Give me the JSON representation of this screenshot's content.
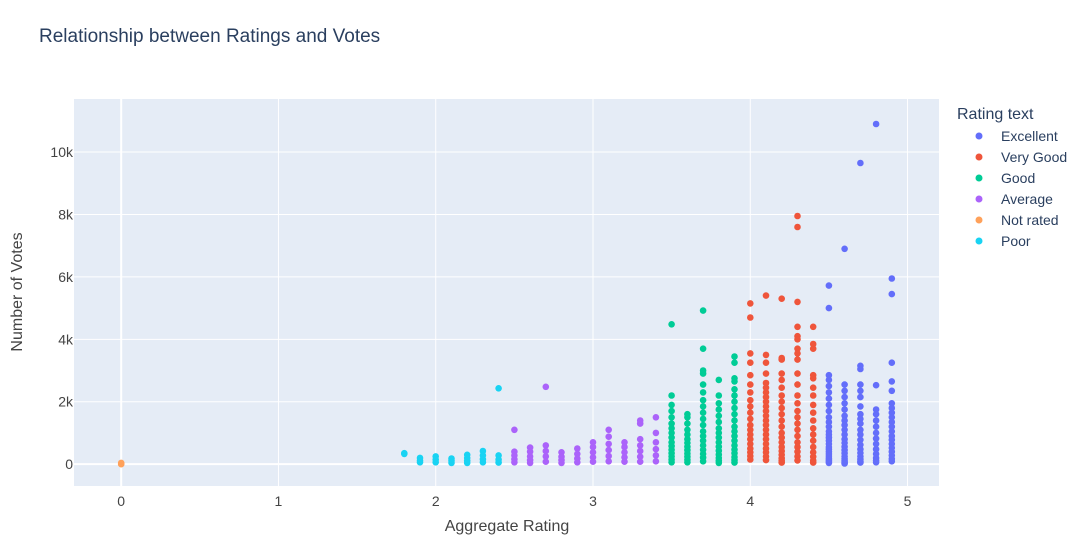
{
  "chart_data": {
    "type": "scatter",
    "title": "Relationship between Ratings and Votes",
    "xlabel": "Aggregate Rating",
    "ylabel": "Number of Votes",
    "xlim": [
      -0.3,
      5.2
    ],
    "ylim": [
      -700,
      11700
    ],
    "x_ticks": [
      0,
      1,
      2,
      3,
      4,
      5
    ],
    "x_tick_labels": [
      "0",
      "1",
      "2",
      "3",
      "4",
      "5"
    ],
    "y_ticks": [
      0,
      2000,
      4000,
      6000,
      8000,
      10000
    ],
    "y_tick_labels": [
      "0",
      "2k",
      "4k",
      "6k",
      "8k",
      "10k"
    ],
    "grid": true,
    "legend_title": "Rating text",
    "legend_position": "right",
    "series": [
      {
        "name": "Excellent",
        "color": "#636efa",
        "x": [
          4.5,
          4.5,
          4.5,
          4.5,
          4.5,
          4.5,
          4.5,
          4.5,
          4.5,
          4.5,
          4.5,
          4.5,
          4.5,
          4.5,
          4.5,
          4.5,
          4.5,
          4.5,
          4.5,
          4.5,
          4.5,
          4.5,
          4.5,
          4.5,
          4.5,
          4.5,
          4.6,
          4.6,
          4.6,
          4.6,
          4.6,
          4.6,
          4.6,
          4.6,
          4.6,
          4.6,
          4.6,
          4.6,
          4.6,
          4.6,
          4.6,
          4.6,
          4.6,
          4.6,
          4.6,
          4.6,
          4.6,
          4.6,
          4.7,
          4.7,
          4.7,
          4.7,
          4.7,
          4.7,
          4.7,
          4.7,
          4.7,
          4.7,
          4.7,
          4.7,
          4.7,
          4.7,
          4.7,
          4.7,
          4.7,
          4.7,
          4.7,
          4.7,
          4.8,
          4.8,
          4.8,
          4.8,
          4.8,
          4.8,
          4.8,
          4.8,
          4.8,
          4.8,
          4.8,
          4.8,
          4.8,
          4.8,
          4.9,
          4.9,
          4.9,
          4.9,
          4.9,
          4.9,
          4.9,
          4.9,
          4.9,
          4.9,
          4.9,
          4.9,
          4.9,
          4.9,
          4.9,
          4.9,
          4.9,
          4.9,
          4.9,
          4.9
        ],
        "y": [
          5720,
          5000,
          2850,
          2700,
          2500,
          2300,
          2100,
          1900,
          1700,
          1500,
          1350,
          1200,
          1050,
          950,
          850,
          750,
          650,
          550,
          480,
          400,
          330,
          260,
          190,
          130,
          80,
          40,
          6900,
          2550,
          2350,
          2150,
          1950,
          1750,
          1550,
          1400,
          1250,
          1100,
          950,
          800,
          680,
          560,
          450,
          350,
          250,
          170,
          110,
          70,
          40,
          20,
          9650,
          3150,
          3050,
          2550,
          2350,
          2150,
          1850,
          1600,
          1450,
          1300,
          1100,
          950,
          780,
          620,
          480,
          360,
          250,
          160,
          90,
          50,
          10900,
          2530,
          1750,
          1600,
          1400,
          1200,
          1000,
          820,
          650,
          480,
          330,
          200,
          120,
          60,
          5950,
          5450,
          3250,
          2650,
          2350,
          1950,
          1800,
          1650,
          1500,
          1350,
          1200,
          1050,
          900,
          780,
          650,
          520,
          400,
          280,
          170,
          90
        ],
        "sizes": [],
        "note": ""
      },
      {
        "name": "Very Good",
        "color": "#ef553b",
        "x": [
          4.0,
          4.0,
          4.0,
          4.0,
          4.0,
          4.0,
          4.0,
          4.0,
          4.0,
          4.0,
          4.0,
          4.0,
          4.0,
          4.0,
          4.0,
          4.0,
          4.0,
          4.0,
          4.0,
          4.0,
          4.1,
          4.1,
          4.1,
          4.1,
          4.1,
          4.1,
          4.1,
          4.1,
          4.1,
          4.1,
          4.1,
          4.1,
          4.1,
          4.1,
          4.1,
          4.1,
          4.1,
          4.1,
          4.1,
          4.1,
          4.1,
          4.1,
          4.2,
          4.2,
          4.2,
          4.2,
          4.2,
          4.2,
          4.2,
          4.2,
          4.2,
          4.2,
          4.2,
          4.2,
          4.2,
          4.2,
          4.2,
          4.2,
          4.2,
          4.2,
          4.2,
          4.2,
          4.2,
          4.3,
          4.3,
          4.3,
          4.3,
          4.3,
          4.3,
          4.3,
          4.3,
          4.3,
          4.3,
          4.3,
          4.3,
          4.3,
          4.3,
          4.3,
          4.3,
          4.3,
          4.3,
          4.3,
          4.3,
          4.3,
          4.3,
          4.3,
          4.4,
          4.4,
          4.4,
          4.4,
          4.4,
          4.4,
          4.4,
          4.4,
          4.4,
          4.4,
          4.4,
          4.4,
          4.4,
          4.4,
          4.4,
          4.4,
          4.4,
          4.4
        ],
        "y": [
          5150,
          4700,
          3550,
          3250,
          2850,
          2550,
          2300,
          2050,
          1850,
          1650,
          1450,
          1250,
          1100,
          950,
          800,
          650,
          500,
          380,
          260,
          150,
          5400,
          3500,
          3250,
          2900,
          2600,
          2450,
          2300,
          2150,
          2000,
          1850,
          1700,
          1550,
          1400,
          1250,
          1100,
          950,
          800,
          650,
          500,
          380,
          250,
          130,
          5300,
          3400,
          3350,
          2900,
          2700,
          2450,
          2200,
          2000,
          1800,
          1600,
          1400,
          1200,
          1000,
          850,
          700,
          550,
          420,
          300,
          190,
          110,
          50,
          7950,
          7600,
          5200,
          4400,
          4100,
          4000,
          3700,
          3550,
          3350,
          2900,
          2550,
          2200,
          1950,
          1700,
          1500,
          1300,
          1100,
          900,
          700,
          550,
          400,
          250,
          120,
          4400,
          3850,
          3700,
          2850,
          2750,
          2450,
          2200,
          1900,
          1650,
          1400,
          1150,
          950,
          750,
          550,
          380,
          240,
          120,
          50
        ],
        "sizes": [],
        "note": ""
      },
      {
        "name": "Good",
        "color": "#00cc96",
        "x": [
          3.5,
          3.5,
          3.5,
          3.5,
          3.5,
          3.5,
          3.5,
          3.5,
          3.5,
          3.5,
          3.5,
          3.5,
          3.5,
          3.5,
          3.5,
          3.5,
          3.6,
          3.6,
          3.6,
          3.6,
          3.6,
          3.6,
          3.6,
          3.6,
          3.6,
          3.6,
          3.6,
          3.6,
          3.6,
          3.7,
          3.7,
          3.7,
          3.7,
          3.7,
          3.7,
          3.7,
          3.7,
          3.7,
          3.7,
          3.7,
          3.7,
          3.7,
          3.7,
          3.7,
          3.7,
          3.7,
          3.7,
          3.7,
          3.8,
          3.8,
          3.8,
          3.8,
          3.8,
          3.8,
          3.8,
          3.8,
          3.8,
          3.8,
          3.8,
          3.8,
          3.8,
          3.8,
          3.8,
          3.8,
          3.9,
          3.9,
          3.9,
          3.9,
          3.9,
          3.9,
          3.9,
          3.9,
          3.9,
          3.9,
          3.9,
          3.9,
          3.9,
          3.9,
          3.9,
          3.9,
          3.9,
          3.9,
          3.9,
          3.9
        ],
        "y": [
          4480,
          2200,
          1900,
          1700,
          1500,
          1300,
          1150,
          1000,
          850,
          700,
          580,
          460,
          350,
          250,
          150,
          60,
          1600,
          1500,
          1300,
          1100,
          950,
          800,
          680,
          560,
          450,
          340,
          240,
          140,
          60,
          4920,
          3700,
          3000,
          2900,
          2550,
          2300,
          2050,
          1850,
          1650,
          1450,
          1250,
          1050,
          900,
          750,
          600,
          460,
          330,
          210,
          90,
          2700,
          2200,
          1950,
          1750,
          1550,
          1350,
          1150,
          1000,
          850,
          700,
          560,
          430,
          310,
          200,
          110,
          40,
          3450,
          3250,
          2750,
          2650,
          2400,
          2200,
          2000,
          1800,
          1600,
          1400,
          1200,
          1050,
          900,
          750,
          600,
          470,
          350,
          230,
          130,
          50
        ],
        "sizes": [],
        "note": ""
      },
      {
        "name": "Average",
        "color": "#ab63fa",
        "x": [
          2.5,
          2.5,
          2.5,
          2.5,
          2.5,
          2.6,
          2.6,
          2.6,
          2.6,
          2.6,
          2.7,
          2.7,
          2.7,
          2.7,
          2.7,
          2.8,
          2.8,
          2.8,
          2.8,
          2.9,
          2.9,
          2.9,
          2.9,
          3.0,
          3.0,
          3.0,
          3.0,
          3.0,
          3.1,
          3.1,
          3.1,
          3.1,
          3.1,
          3.1,
          3.2,
          3.2,
          3.2,
          3.2,
          3.2,
          3.3,
          3.3,
          3.3,
          3.3,
          3.3,
          3.3,
          3.3,
          3.4,
          3.4,
          3.4,
          3.4,
          3.4,
          3.4
        ],
        "y": [
          1100,
          400,
          280,
          160,
          60,
          530,
          400,
          250,
          130,
          40,
          2480,
          600,
          420,
          250,
          80,
          380,
          240,
          130,
          40,
          500,
          330,
          180,
          60,
          700,
          550,
          380,
          220,
          80,
          1100,
          880,
          650,
          450,
          260,
          90,
          700,
          550,
          380,
          220,
          80,
          1400,
          1300,
          800,
          600,
          420,
          240,
          80,
          1500,
          1000,
          700,
          480,
          280,
          90
        ],
        "sizes": [],
        "note": ""
      },
      {
        "name": "Not rated",
        "color": "#ffa15a",
        "x": [
          0,
          0,
          0
        ],
        "y": [
          0,
          20,
          40
        ],
        "sizes": [],
        "note": ""
      },
      {
        "name": "Poor",
        "color": "#19d3f3",
        "x": [
          1.8,
          1.8,
          1.9,
          1.9,
          1.9,
          2.0,
          2.0,
          2.0,
          2.1,
          2.1,
          2.1,
          2.2,
          2.2,
          2.2,
          2.2,
          2.3,
          2.3,
          2.3,
          2.3,
          2.4,
          2.4,
          2.4,
          2.4
        ],
        "y": [
          350,
          330,
          200,
          120,
          60,
          250,
          150,
          60,
          180,
          110,
          40,
          300,
          200,
          110,
          40,
          420,
          280,
          160,
          60,
          2430,
          280,
          150,
          50
        ],
        "sizes": [],
        "note": ""
      }
    ]
  }
}
